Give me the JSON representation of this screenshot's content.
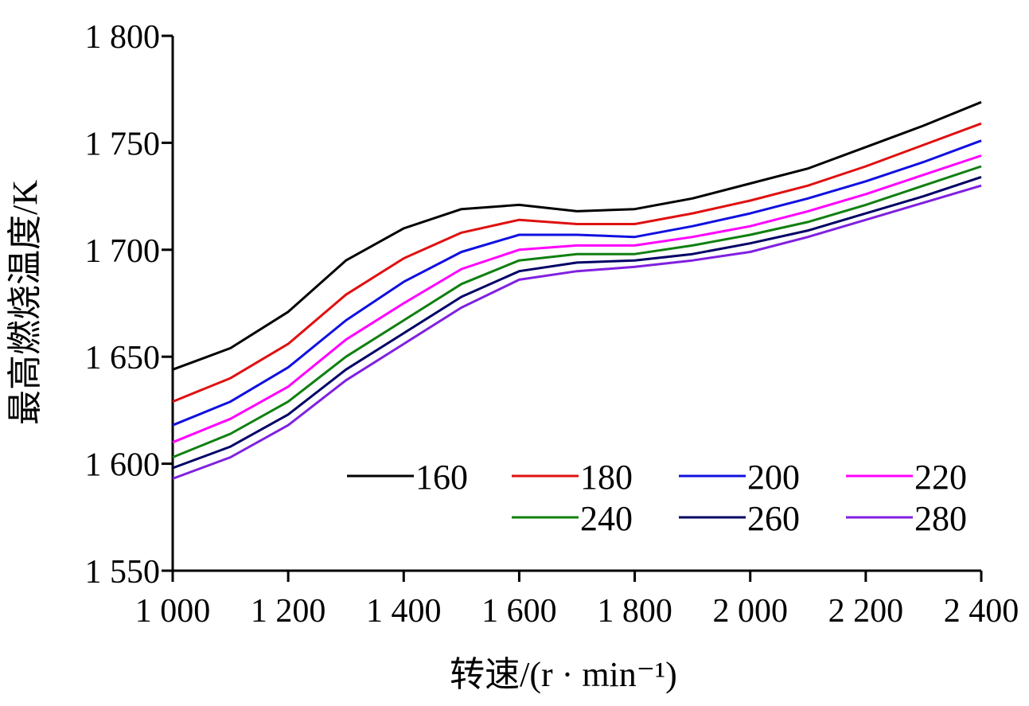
{
  "chart_data": {
    "type": "line",
    "title": "",
    "xlabel": "转速/(r · min⁻¹)",
    "ylabel": "最高燃烧温度/K",
    "xlim": [
      1000,
      2400
    ],
    "ylim": [
      1550,
      1800
    ],
    "x_ticks": [
      1000,
      1200,
      1400,
      1600,
      1800,
      2000,
      2200,
      2400
    ],
    "x_tick_labels": [
      "1 000",
      "1 200",
      "1 400",
      "1 600",
      "1 800",
      "2 000",
      "2 200",
      "2 400"
    ],
    "y_ticks": [
      1550,
      1600,
      1650,
      1700,
      1750,
      1800
    ],
    "y_tick_labels": [
      "1 550",
      "1 600",
      "1 650",
      "1 700",
      "1 750",
      "1 800"
    ],
    "legend_position": "lower-right",
    "x": [
      1000,
      1100,
      1200,
      1300,
      1400,
      1500,
      1600,
      1700,
      1800,
      1900,
      2000,
      2100,
      2200,
      2300,
      2400
    ],
    "series": [
      {
        "name": "160",
        "color": "#000000",
        "values": [
          1644,
          1654,
          1671,
          1695,
          1710,
          1719,
          1721,
          1718,
          1719,
          1724,
          1731,
          1738,
          1748,
          1758,
          1769
        ]
      },
      {
        "name": "180",
        "color": "#e01010",
        "values": [
          1629,
          1640,
          1656,
          1679,
          1696,
          1708,
          1714,
          1712,
          1712,
          1717,
          1723,
          1730,
          1739,
          1749,
          1759
        ]
      },
      {
        "name": "200",
        "color": "#1010e0",
        "values": [
          1618,
          1629,
          1645,
          1667,
          1685,
          1699,
          1707,
          1707,
          1706,
          1711,
          1717,
          1724,
          1732,
          1741,
          1751
        ]
      },
      {
        "name": "220",
        "color": "#ff00ff",
        "values": [
          1610,
          1621,
          1636,
          1658,
          1675,
          1691,
          1700,
          1702,
          1702,
          1706,
          1711,
          1718,
          1726,
          1735,
          1744
        ]
      },
      {
        "name": "240",
        "color": "#108010",
        "values": [
          1603,
          1614,
          1629,
          1650,
          1667,
          1684,
          1695,
          1698,
          1698,
          1702,
          1707,
          1713,
          1721,
          1730,
          1739
        ]
      },
      {
        "name": "260",
        "color": "#000066",
        "values": [
          1598,
          1608,
          1623,
          1644,
          1661,
          1678,
          1690,
          1694,
          1695,
          1698,
          1703,
          1709,
          1717,
          1725,
          1734
        ]
      },
      {
        "name": "280",
        "color": "#8020e0",
        "values": [
          1593,
          1603,
          1618,
          1639,
          1656,
          1673,
          1686,
          1690,
          1692,
          1695,
          1699,
          1706,
          1714,
          1722,
          1730
        ]
      }
    ]
  }
}
